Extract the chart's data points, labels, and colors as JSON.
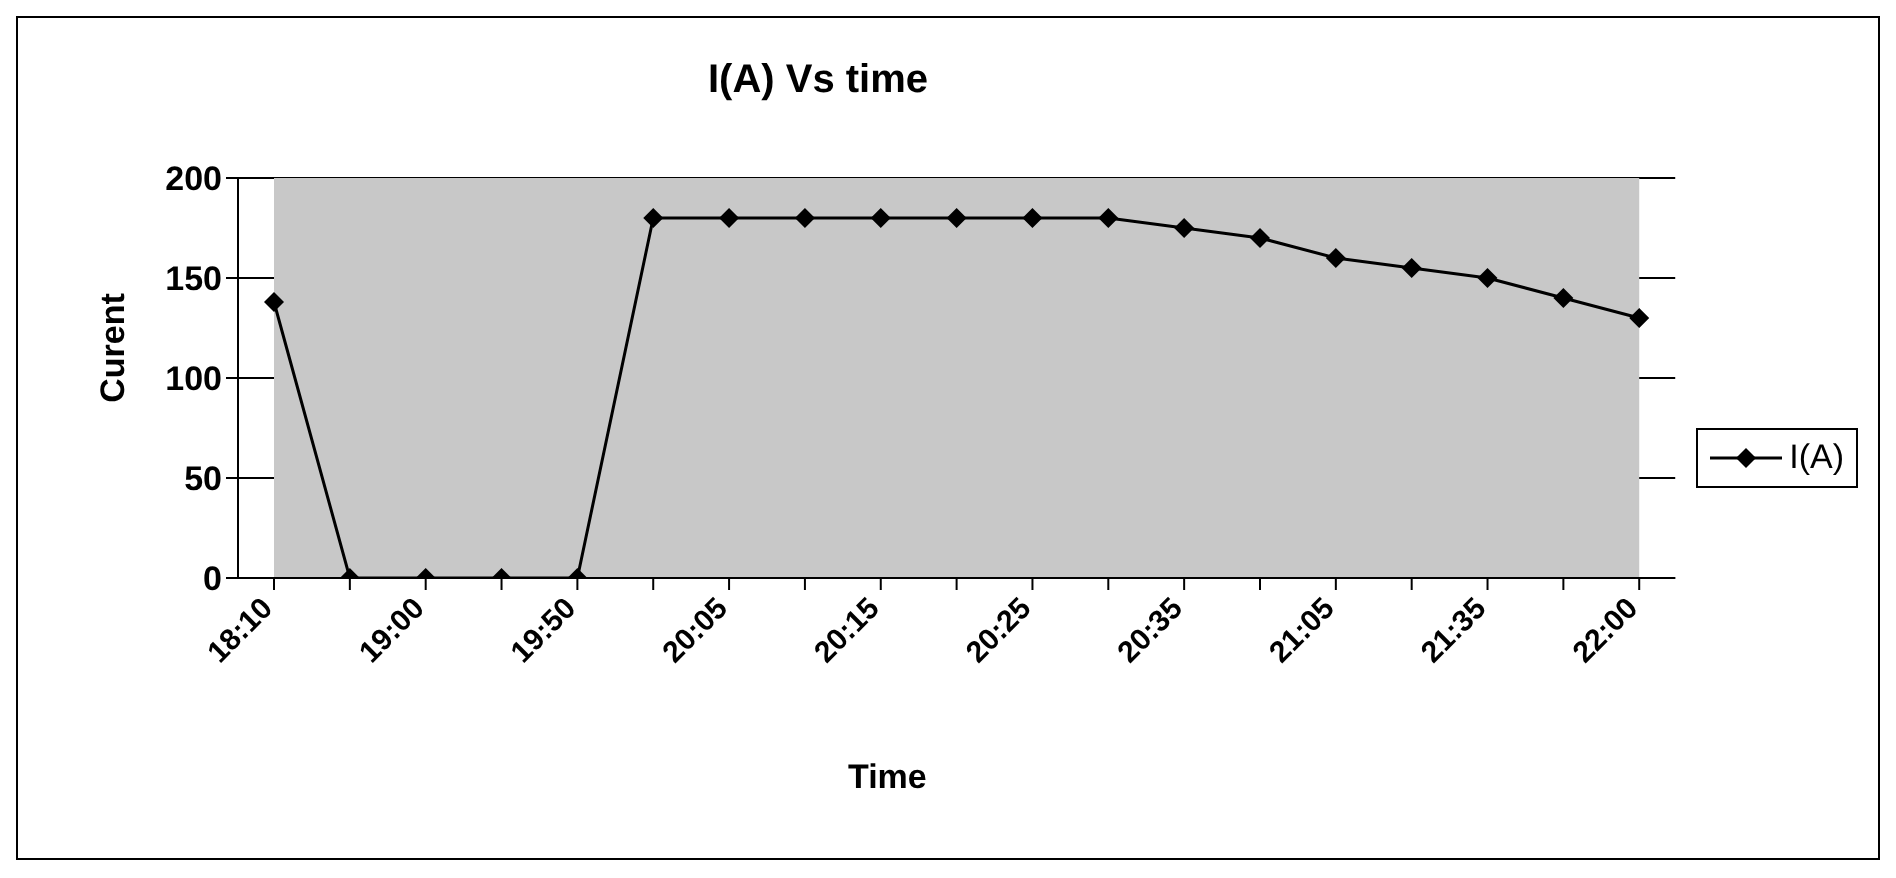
{
  "chart_data": {
    "type": "line",
    "title": "I(A) Vs time",
    "xlabel": "Time",
    "ylabel": "Curent",
    "categories": [
      "18:10",
      null,
      "19:00",
      null,
      "19:50",
      null,
      "20:05",
      null,
      "20:15",
      null,
      "20:25",
      null,
      "20:35",
      null,
      "21:05",
      null,
      "21:35",
      null,
      "22:00"
    ],
    "series": [
      {
        "name": "I(A)",
        "color": "#000000",
        "values": [
          138,
          0,
          0,
          0,
          0,
          180,
          180,
          180,
          180,
          180,
          180,
          180,
          175,
          170,
          160,
          155,
          150,
          140,
          130
        ]
      }
    ],
    "ylim": [
      0,
      200
    ],
    "yticks": [
      0,
      50,
      100,
      150,
      200
    ],
    "grid": "y",
    "legend": "right",
    "marker": "diamond",
    "line_style": "solid"
  }
}
